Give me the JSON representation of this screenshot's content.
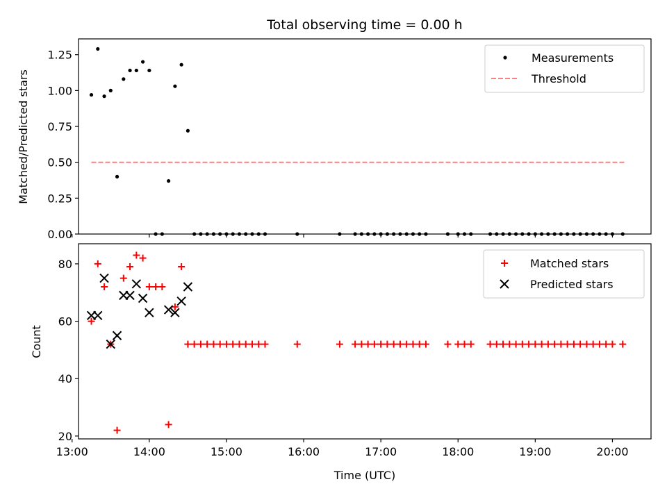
{
  "chart_data": [
    {
      "type": "scatter",
      "title": "Total observing time = 0.00 h",
      "xlabel": "",
      "ylabel": "Matched/Predicted stars",
      "xlim": [
        "13:05",
        "20:30"
      ],
      "ylim": [
        0,
        1.36
      ],
      "yticks": [
        "0.00",
        "0.25",
        "0.50",
        "0.75",
        "1.00",
        "1.25"
      ],
      "legend_position": "top-right",
      "series": [
        {
          "name": "Measurements",
          "style": "dot",
          "color": "#000000",
          "x": [
            "13:15",
            "13:20",
            "13:25",
            "13:30",
            "13:35",
            "13:40",
            "13:45",
            "13:50",
            "13:55",
            "14:00",
            "14:05",
            "14:10",
            "14:15",
            "14:20",
            "14:25",
            "14:30",
            "14:35",
            "14:40",
            "14:45",
            "14:50",
            "14:55",
            "15:00",
            "15:05",
            "15:10",
            "15:15",
            "15:20",
            "15:25",
            "15:30",
            "15:55",
            "16:28",
            "16:40",
            "16:45",
            "16:50",
            "16:55",
            "17:00",
            "17:05",
            "17:10",
            "17:15",
            "17:20",
            "17:25",
            "17:30",
            "17:35",
            "17:52",
            "18:00",
            "18:05",
            "18:10",
            "18:25",
            "18:30",
            "18:35",
            "18:40",
            "18:45",
            "18:50",
            "18:55",
            "19:00",
            "19:05",
            "19:10",
            "19:15",
            "19:20",
            "19:25",
            "19:30",
            "19:35",
            "19:40",
            "19:45",
            "19:50",
            "19:55",
            "20:00",
            "20:08"
          ],
          "y": [
            0.97,
            1.29,
            0.96,
            1.0,
            0.4,
            1.08,
            1.14,
            1.14,
            1.2,
            1.14,
            0,
            0,
            0.37,
            1.03,
            1.18,
            0.72,
            0,
            0,
            0,
            0,
            0,
            0,
            0,
            0,
            0,
            0,
            0,
            0,
            0,
            0,
            0,
            0,
            0,
            0,
            0,
            0,
            0,
            0,
            0,
            0,
            0,
            0,
            0,
            0,
            0,
            0,
            0,
            0,
            0,
            0,
            0,
            0,
            0,
            0,
            0,
            0,
            0,
            0,
            0,
            0,
            0,
            0,
            0,
            0,
            0,
            0,
            0
          ]
        },
        {
          "name": "Threshold",
          "style": "dashed-line",
          "color": "#ff7f7f",
          "x": [
            "13:15",
            "20:10"
          ],
          "y": [
            0.5,
            0.5
          ]
        }
      ]
    },
    {
      "type": "scatter",
      "title": "",
      "xlabel": "Time (UTC)",
      "ylabel": "Count",
      "xlim": [
        "13:05",
        "20:30"
      ],
      "ylim": [
        19,
        87
      ],
      "yticks": [
        "20",
        "40",
        "60",
        "80"
      ],
      "xticks": [
        "13:00",
        "14:00",
        "15:00",
        "16:00",
        "17:00",
        "18:00",
        "19:00",
        "20:00"
      ],
      "legend_position": "top-right",
      "series": [
        {
          "name": "Matched stars",
          "style": "plus",
          "color": "#ff0000",
          "x": [
            "13:15",
            "13:20",
            "13:25",
            "13:30",
            "13:35",
            "13:40",
            "13:45",
            "13:50",
            "13:55",
            "14:00",
            "14:05",
            "14:10",
            "14:15",
            "14:20",
            "14:25",
            "14:30",
            "14:35",
            "14:40",
            "14:45",
            "14:50",
            "14:55",
            "15:00",
            "15:05",
            "15:10",
            "15:15",
            "15:20",
            "15:25",
            "15:30",
            "15:55",
            "16:28",
            "16:40",
            "16:45",
            "16:50",
            "16:55",
            "17:00",
            "17:05",
            "17:10",
            "17:15",
            "17:20",
            "17:25",
            "17:30",
            "17:35",
            "17:52",
            "18:00",
            "18:05",
            "18:10",
            "18:25",
            "18:30",
            "18:35",
            "18:40",
            "18:45",
            "18:50",
            "18:55",
            "19:00",
            "19:05",
            "19:10",
            "19:15",
            "19:20",
            "19:25",
            "19:30",
            "19:35",
            "19:40",
            "19:45",
            "19:50",
            "19:55",
            "20:00",
            "20:08"
          ],
          "y": [
            60,
            80,
            72,
            52,
            22,
            75,
            79,
            83,
            82,
            72,
            72,
            72,
            24,
            65,
            79,
            52,
            52,
            52,
            52,
            52,
            52,
            52,
            52,
            52,
            52,
            52,
            52,
            52,
            52,
            52,
            52,
            52,
            52,
            52,
            52,
            52,
            52,
            52,
            52,
            52,
            52,
            52,
            52,
            52,
            52,
            52,
            52,
            52,
            52,
            52,
            52,
            52,
            52,
            52,
            52,
            52,
            52,
            52,
            52,
            52,
            52,
            52,
            52,
            52,
            52,
            52,
            52
          ]
        },
        {
          "name": "Predicted stars",
          "style": "x",
          "color": "#000000",
          "x": [
            "13:15",
            "13:20",
            "13:25",
            "13:30",
            "13:35",
            "13:40",
            "13:45",
            "13:50",
            "13:55",
            "14:00",
            "14:15",
            "14:20",
            "14:25",
            "14:30"
          ],
          "y": [
            62,
            62,
            75,
            52,
            55,
            69,
            69,
            73,
            68,
            63,
            64,
            63,
            67,
            72
          ]
        }
      ]
    }
  ]
}
